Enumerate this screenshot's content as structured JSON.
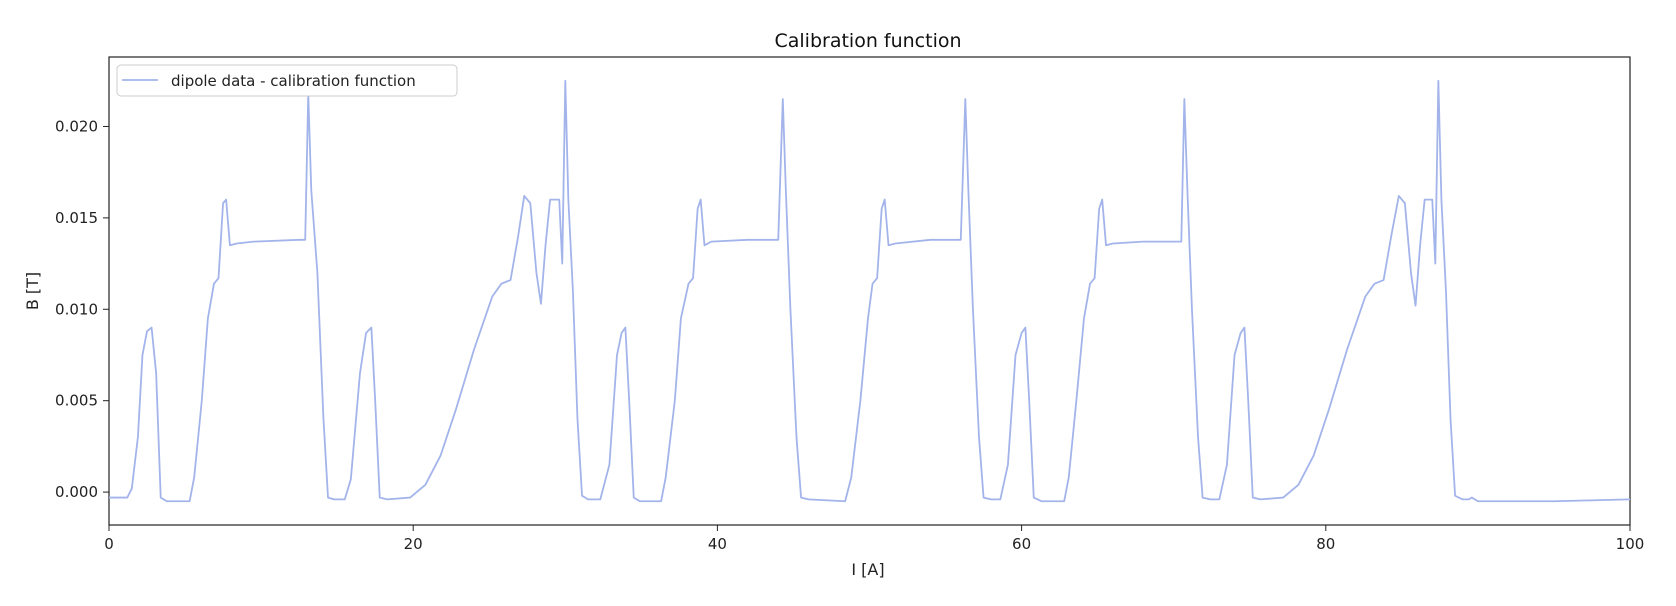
{
  "chart_data": {
    "type": "line",
    "title": "Calibration function",
    "xlabel": "I [A]",
    "ylabel": "B [T]",
    "xlim": [
      0,
      100
    ],
    "ylim": [
      -0.0018,
      0.0238
    ],
    "x_ticks": [
      0,
      20,
      40,
      60,
      80,
      100
    ],
    "x_tick_labels": [
      "0",
      "20",
      "40",
      "60",
      "80",
      "100"
    ],
    "y_ticks": [
      0.0,
      0.005,
      0.01,
      0.015,
      0.02
    ],
    "y_tick_labels": [
      "0.000",
      "0.005",
      "0.010",
      "0.015",
      "0.020"
    ],
    "grid": false,
    "legend": {
      "placement": "top-left",
      "entries": [
        "dipole data - calibration function"
      ]
    },
    "series": [
      {
        "name": "dipole data - calibration function",
        "color": "#a3b4eb",
        "points": [
          [
            0.0,
            -0.0003
          ],
          [
            1.2,
            -0.0003
          ],
          [
            1.5,
            0.0002
          ],
          [
            1.9,
            0.003
          ],
          [
            2.2,
            0.0075
          ],
          [
            2.5,
            0.0088
          ],
          [
            2.8,
            0.009
          ],
          [
            3.1,
            0.0065
          ],
          [
            3.4,
            -0.0003
          ],
          [
            3.8,
            -0.0005
          ],
          [
            5.3,
            -0.0005
          ],
          [
            5.6,
            0.0008
          ],
          [
            6.1,
            0.005
          ],
          [
            6.5,
            0.0095
          ],
          [
            6.9,
            0.0114
          ],
          [
            7.2,
            0.0117
          ],
          [
            7.5,
            0.0158
          ],
          [
            7.7,
            0.016
          ],
          [
            7.95,
            0.0135
          ],
          [
            8.4,
            0.0136
          ],
          [
            9.5,
            0.0137
          ],
          [
            12.5,
            0.0138
          ],
          [
            12.9,
            0.0138
          ],
          [
            13.1,
            0.0218
          ],
          [
            13.3,
            0.0165
          ],
          [
            13.7,
            0.012
          ],
          [
            14.1,
            0.004
          ],
          [
            14.4,
            -0.0003
          ],
          [
            14.8,
            -0.0004
          ],
          [
            15.5,
            -0.0004
          ],
          [
            15.9,
            0.0007
          ],
          [
            16.5,
            0.0065
          ],
          [
            16.9,
            0.0087
          ],
          [
            17.25,
            0.009
          ],
          [
            17.5,
            0.005
          ],
          [
            17.8,
            -0.0003
          ],
          [
            18.3,
            -0.0004
          ],
          [
            19.8,
            -0.0003
          ],
          [
            20.8,
            0.0004
          ],
          [
            21.8,
            0.002
          ],
          [
            22.8,
            0.0045
          ],
          [
            24.0,
            0.0078
          ],
          [
            25.2,
            0.0107
          ],
          [
            25.8,
            0.0114
          ],
          [
            26.4,
            0.0116
          ],
          [
            26.9,
            0.014
          ],
          [
            27.3,
            0.0162
          ],
          [
            27.7,
            0.0158
          ],
          [
            28.1,
            0.012
          ],
          [
            28.4,
            0.0103
          ],
          [
            28.7,
            0.0135
          ],
          [
            29.0,
            0.016
          ],
          [
            29.6,
            0.016
          ],
          [
            29.8,
            0.0125
          ],
          [
            30.0,
            0.0225
          ],
          [
            30.2,
            0.016
          ],
          [
            30.5,
            0.011
          ],
          [
            30.8,
            0.004
          ],
          [
            31.1,
            -0.0002
          ],
          [
            31.5,
            -0.0004
          ],
          [
            32.3,
            -0.0004
          ],
          [
            32.9,
            0.0015
          ],
          [
            33.4,
            0.0075
          ],
          [
            33.7,
            0.0087
          ],
          [
            33.95,
            0.009
          ],
          [
            34.2,
            0.005
          ],
          [
            34.5,
            -0.0003
          ],
          [
            34.9,
            -0.0005
          ],
          [
            36.3,
            -0.0005
          ],
          [
            36.6,
            0.0008
          ],
          [
            37.2,
            0.005
          ],
          [
            37.6,
            0.0095
          ],
          [
            38.1,
            0.0114
          ],
          [
            38.4,
            0.0117
          ],
          [
            38.7,
            0.0155
          ],
          [
            38.9,
            0.016
          ],
          [
            39.15,
            0.0135
          ],
          [
            39.6,
            0.0137
          ],
          [
            42.0,
            0.0138
          ],
          [
            44.0,
            0.0138
          ],
          [
            44.3,
            0.0215
          ],
          [
            44.5,
            0.0165
          ],
          [
            44.8,
            0.01
          ],
          [
            45.2,
            0.003
          ],
          [
            45.5,
            -0.0003
          ],
          [
            46.0,
            -0.0004
          ],
          [
            48.4,
            -0.0005
          ],
          [
            48.8,
            0.0008
          ],
          [
            49.4,
            0.005
          ],
          [
            49.9,
            0.0095
          ],
          [
            50.2,
            0.0114
          ],
          [
            50.5,
            0.0117
          ],
          [
            50.8,
            0.0155
          ],
          [
            51.0,
            0.016
          ],
          [
            51.25,
            0.0135
          ],
          [
            51.7,
            0.0136
          ],
          [
            54.0,
            0.0138
          ],
          [
            56.0,
            0.0138
          ],
          [
            56.3,
            0.0215
          ],
          [
            56.5,
            0.0165
          ],
          [
            56.8,
            0.01
          ],
          [
            57.2,
            0.003
          ],
          [
            57.5,
            -0.0003
          ],
          [
            58.0,
            -0.0004
          ],
          [
            58.6,
            -0.0004
          ],
          [
            59.1,
            0.0015
          ],
          [
            59.6,
            0.0075
          ],
          [
            60.0,
            0.0087
          ],
          [
            60.25,
            0.009
          ],
          [
            60.5,
            0.005
          ],
          [
            60.8,
            -0.0003
          ],
          [
            61.3,
            -0.0005
          ],
          [
            62.8,
            -0.0005
          ],
          [
            63.1,
            0.0008
          ],
          [
            63.6,
            0.005
          ],
          [
            64.1,
            0.0095
          ],
          [
            64.5,
            0.0114
          ],
          [
            64.8,
            0.0117
          ],
          [
            65.1,
            0.0155
          ],
          [
            65.3,
            0.016
          ],
          [
            65.55,
            0.0135
          ],
          [
            66.0,
            0.0136
          ],
          [
            68.0,
            0.0137
          ],
          [
            70.5,
            0.0137
          ],
          [
            70.7,
            0.0215
          ],
          [
            70.9,
            0.0165
          ],
          [
            71.2,
            0.01
          ],
          [
            71.6,
            0.003
          ],
          [
            71.9,
            -0.0003
          ],
          [
            72.4,
            -0.0004
          ],
          [
            73.0,
            -0.0004
          ],
          [
            73.5,
            0.0015
          ],
          [
            74.0,
            0.0075
          ],
          [
            74.4,
            0.0087
          ],
          [
            74.65,
            0.009
          ],
          [
            74.9,
            0.005
          ],
          [
            75.2,
            -0.0003
          ],
          [
            75.7,
            -0.0004
          ],
          [
            77.2,
            -0.0003
          ],
          [
            78.2,
            0.0004
          ],
          [
            79.2,
            0.002
          ],
          [
            80.2,
            0.0045
          ],
          [
            81.4,
            0.0078
          ],
          [
            82.6,
            0.0107
          ],
          [
            83.2,
            0.0114
          ],
          [
            83.8,
            0.0116
          ],
          [
            84.3,
            0.014
          ],
          [
            84.8,
            0.0162
          ],
          [
            85.2,
            0.0158
          ],
          [
            85.6,
            0.012
          ],
          [
            85.9,
            0.0102
          ],
          [
            86.2,
            0.0135
          ],
          [
            86.5,
            0.016
          ],
          [
            87.0,
            0.016
          ],
          [
            87.2,
            0.0125
          ],
          [
            87.4,
            0.0225
          ],
          [
            87.6,
            0.016
          ],
          [
            87.9,
            0.011
          ],
          [
            88.2,
            0.004
          ],
          [
            88.5,
            -0.0002
          ],
          [
            89.0,
            -0.0004
          ],
          [
            89.4,
            -0.0004
          ],
          [
            89.6,
            -0.0003
          ],
          [
            90.0,
            -0.0005
          ],
          [
            95.0,
            -0.0005
          ],
          [
            100.0,
            -0.0004
          ]
        ]
      }
    ]
  }
}
